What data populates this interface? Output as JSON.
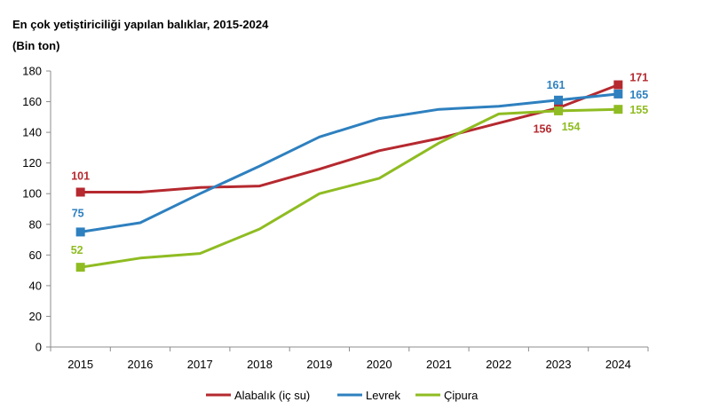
{
  "title": "En çok yetiştiriciliği yapılan balıklar, 2015-2024",
  "subtitle": "(Bin ton)",
  "chart_data": {
    "type": "line",
    "x": [
      "2015",
      "2016",
      "2017",
      "2018",
      "2019",
      "2020",
      "2021",
      "2022",
      "2023",
      "2024"
    ],
    "ylim": [
      0,
      180
    ],
    "yticks": [
      0,
      20,
      40,
      60,
      80,
      100,
      120,
      140,
      160,
      180
    ],
    "grid": false,
    "legend": "bottom",
    "series": [
      {
        "name": "Alabalık (iç su)",
        "color": "#b5292f",
        "values": [
          101,
          101,
          104,
          105,
          116,
          128,
          136,
          146,
          156,
          171
        ],
        "labels": [
          {
            "index": 0,
            "text": "101"
          },
          {
            "index": 8,
            "text": "156"
          },
          {
            "index": 9,
            "text": "171"
          }
        ]
      },
      {
        "name": "Levrek",
        "color": "#2e80bf",
        "values": [
          75,
          81,
          100,
          118,
          137,
          149,
          155,
          157,
          161,
          165
        ],
        "labels": [
          {
            "index": 0,
            "text": "75"
          },
          {
            "index": 8,
            "text": "161"
          },
          {
            "index": 9,
            "text": "165"
          }
        ]
      },
      {
        "name": "Çipura",
        "color": "#8fbc22",
        "values": [
          52,
          58,
          61,
          77,
          100,
          110,
          133,
          152,
          154,
          155
        ],
        "labels": [
          {
            "index": 0,
            "text": "52"
          },
          {
            "index": 8,
            "text": "154"
          },
          {
            "index": 9,
            "text": "155"
          }
        ]
      }
    ]
  }
}
